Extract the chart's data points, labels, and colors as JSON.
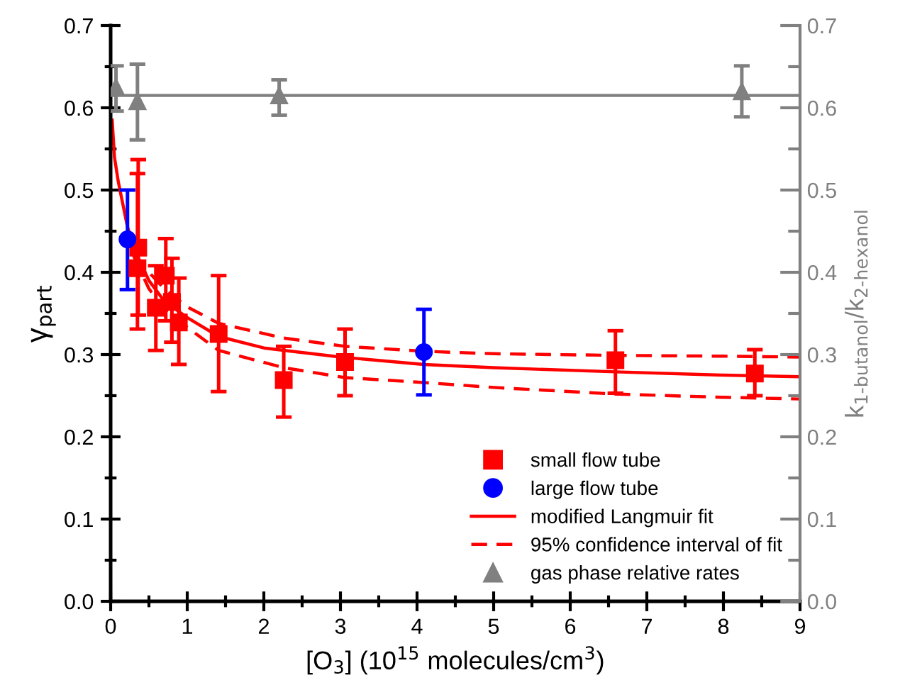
{
  "chart_data": {
    "type": "scatter",
    "xlabel": "[O$_{3}$] (10$^{15}$ molecules/cm$^{3}$)",
    "ylabel": "γ$_{part}$",
    "y2label": "k$_{1-butanol}$/k$_{2-hexanol}$",
    "xlim": [
      0,
      9
    ],
    "xticks": [
      0,
      1,
      2,
      3,
      4,
      5,
      6,
      7,
      8,
      9
    ],
    "ylim": [
      0,
      0.7
    ],
    "yticks": [
      {
        "value": 0,
        "label": "0.0"
      },
      0.1,
      0.2,
      0.3,
      0.4,
      0.5,
      0.6,
      0.7
    ],
    "y2lim": [
      0,
      0.7
    ],
    "y2ticks": [
      {
        "value": 0,
        "label": "0.0"
      },
      0.1,
      0.2,
      0.3,
      0.4,
      0.5,
      0.6,
      0.7
    ],
    "grid": false,
    "legend": "bottom right",
    "series": [
      {
        "name": "small flow tube",
        "marker": "square",
        "color": "#ff0000",
        "x": [
          0.36,
          0.35,
          0.59,
          0.72,
          0.8,
          0.89,
          1.41,
          2.26,
          3.06,
          6.59,
          8.41
        ],
        "values": [
          0.43,
          0.405,
          0.357,
          0.396,
          0.364,
          0.339,
          0.325,
          0.269,
          0.291,
          0.293,
          0.277
        ],
        "errors": [
          [
            0.348,
            0.537
          ],
          [
            0.331,
            0.52
          ],
          [
            0.305,
            0.408
          ],
          [
            0.341,
            0.441
          ],
          [
            0.315,
            0.417
          ],
          [
            0.288,
            0.393
          ],
          [
            0.255,
            0.396
          ],
          [
            0.224,
            0.31
          ],
          [
            0.25,
            0.331
          ],
          [
            0.253,
            0.329
          ],
          [
            0.25,
            0.306
          ]
        ]
      },
      {
        "name": "large flow tube",
        "marker": "circle",
        "color": "#0000ff",
        "x": [
          0.22,
          4.09
        ],
        "values": [
          0.44,
          0.303
        ],
        "errors": [
          [
            0.379,
            0.5
          ],
          [
            0.251,
            0.355
          ]
        ]
      },
      {
        "name": "modified Langmuir fit",
        "type": "line",
        "line_style": "solid",
        "color": "#ff0000",
        "x": [
          0.02,
          0.05,
          0.1,
          0.22,
          0.35,
          0.5,
          0.7,
          1.0,
          1.41,
          2.0,
          3.0,
          4.09,
          5.0,
          6.59,
          8.0,
          9.0
        ],
        "values": [
          0.585,
          0.54,
          0.51,
          0.455,
          0.42,
          0.39,
          0.365,
          0.345,
          0.322,
          0.308,
          0.297,
          0.288,
          0.284,
          0.279,
          0.275,
          0.273
        ]
      },
      {
        "name": "95% confidence interval of fit",
        "type": "line",
        "line_style": "dashed",
        "color": "#ff0000",
        "x": [
          0.3,
          0.5,
          0.7,
          1.0,
          1.41,
          2.26,
          3.06,
          4.09,
          5.0,
          6.59,
          8.0,
          9.0
        ],
        "values": [
          0.42,
          0.4,
          0.38,
          0.358,
          0.338,
          0.32,
          0.31,
          0.304,
          0.301,
          0.299,
          0.298,
          0.297
        ]
      },
      {
        "type": "line",
        "line_style": "dashed",
        "color": "#ff0000",
        "x": [
          0.3,
          0.5,
          0.7,
          1.0,
          1.41,
          2.26,
          3.06,
          4.09,
          5.0,
          6.59,
          8.0,
          9.0
        ],
        "values": [
          0.42,
          0.38,
          0.355,
          0.333,
          0.305,
          0.284,
          0.272,
          0.266,
          0.26,
          0.252,
          0.248,
          0.246
        ]
      },
      {
        "name": "gas phase relative rates",
        "axis": "y2",
        "marker": "triangle",
        "color": "#808080",
        "x": [
          0.07,
          0.35,
          2.2,
          8.24
        ],
        "values": [
          0.625,
          0.608,
          0.615,
          0.62
        ],
        "errors": [
          [
            0.596,
            0.651
          ],
          [
            0.561,
            0.653
          ],
          [
            0.591,
            0.634
          ],
          [
            0.589,
            0.651
          ]
        ]
      },
      {
        "type": "line",
        "axis": "y2",
        "line_style": "solid",
        "color": "#808080",
        "x": [
          0,
          9
        ],
        "values": [
          0.615,
          0.615
        ]
      }
    ]
  }
}
